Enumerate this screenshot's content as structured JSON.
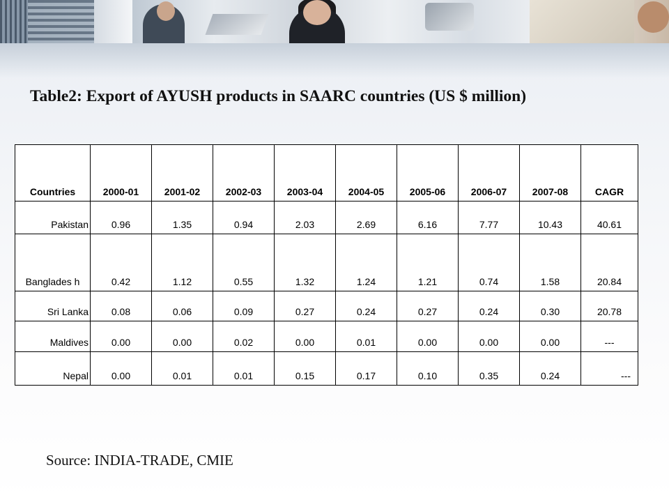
{
  "title": "Table2: Export of AYUSH products in SAARC countries (US $ million)",
  "table": {
    "headers": [
      "Countries",
      "2000-01",
      "2001-02",
      "2002-03",
      "2003-04",
      "2004-05",
      "2005-06",
      "2006-07",
      "2007-08",
      "CAGR"
    ],
    "rows": [
      [
        "Pakistan",
        "0.96",
        "1.35",
        "0.94",
        "2.03",
        "2.69",
        "6.16",
        "7.77",
        "10.43",
        "40.61"
      ],
      [
        "Banglades h",
        "0.42",
        "1.12",
        "0.55",
        "1.32",
        "1.24",
        "1.21",
        "0.74",
        "1.58",
        "20.84"
      ],
      [
        "Sri Lanka",
        "0.08",
        "0.06",
        "0.09",
        "0.27",
        "0.24",
        "0.27",
        "0.24",
        "0.30",
        "20.78"
      ],
      [
        "Maldives",
        "0.00",
        "0.00",
        "0.02",
        "0.00",
        "0.01",
        "0.00",
        "0.00",
        "0.00",
        "---"
      ],
      [
        "Nepal",
        "0.00",
        "0.01",
        "0.01",
        "0.15",
        "0.17",
        "0.10",
        "0.35",
        "0.24",
        "---"
      ]
    ]
  },
  "source": "Source: INDIA-TRADE, CMIE"
}
